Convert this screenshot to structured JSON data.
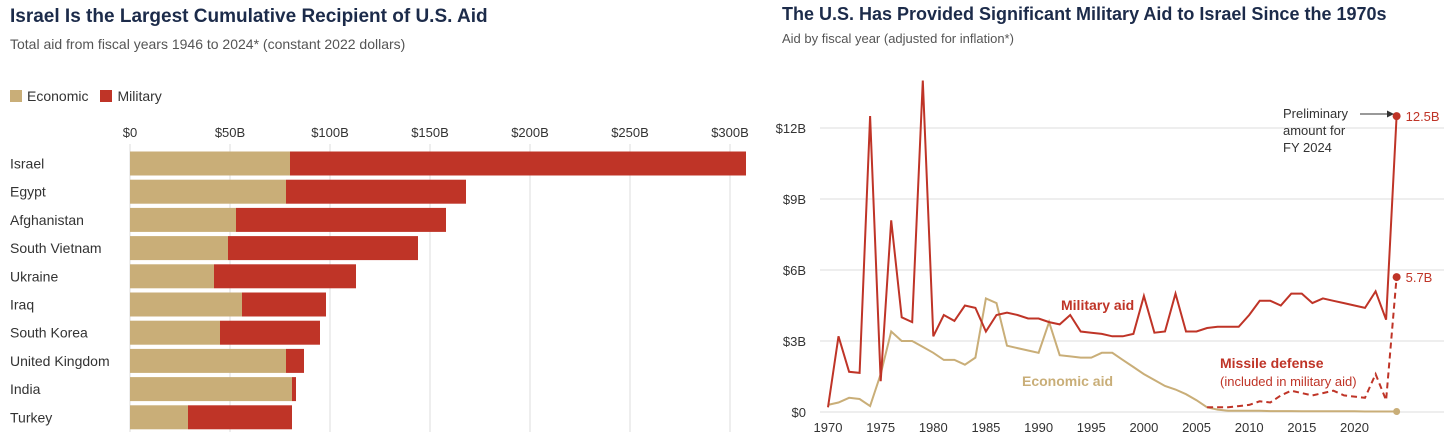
{
  "colors": {
    "economic": "#c9ae78",
    "military": "#bf3427",
    "grid": "#dedede",
    "title": "#1c2b4a"
  },
  "chart_data": [
    {
      "type": "bar",
      "orientation": "horizontal",
      "stacked": true,
      "title": "Israel Is the Largest Cumulative Recipient of U.S. Aid",
      "subtitle": "Total aid from fiscal years 1946 to 2024* (constant 2022 dollars)",
      "legend": [
        "Economic",
        "Military"
      ],
      "legend_position": "top-left",
      "xlim": [
        0,
        310
      ],
      "x_ticks": [
        0,
        50,
        100,
        150,
        200,
        250,
        300
      ],
      "x_tick_labels": [
        "$0",
        "$50B",
        "$100B",
        "$150B",
        "$200B",
        "$250B",
        "$300B"
      ],
      "grid": true,
      "categories": [
        "Israel",
        "Egypt",
        "Afghanistan",
        "South Vietnam",
        "Ukraine",
        "Iraq",
        "South Korea",
        "United Kingdom",
        "India",
        "Turkey"
      ],
      "series": [
        {
          "name": "Economic",
          "values": [
            80,
            78,
            53,
            49,
            42,
            56,
            45,
            78,
            81,
            29
          ]
        },
        {
          "name": "Military",
          "values": [
            228,
            90,
            105,
            95,
            71,
            42,
            50,
            9,
            2,
            52
          ]
        }
      ]
    },
    {
      "type": "line",
      "title": "The U.S. Has Provided Significant Military Aid to Israel Since the 1970s",
      "subtitle": "Aid by fiscal year (adjusted for inflation*)",
      "ylim": [
        0,
        14
      ],
      "y_ticks": [
        0,
        3,
        6,
        9,
        12
      ],
      "y_tick_labels": [
        "$0",
        "$3B",
        "$6B",
        "$9B",
        "$12B"
      ],
      "xlim": [
        1969,
        2025
      ],
      "x_ticks": [
        1970,
        1975,
        1980,
        1985,
        1990,
        1995,
        2000,
        2005,
        2010,
        2015,
        2020
      ],
      "grid": true,
      "series": [
        {
          "name": "Military aid",
          "x": [
            1970,
            1971,
            1972,
            1973,
            1974,
            1975,
            1976,
            1977,
            1978,
            1979,
            1980,
            1981,
            1982,
            1983,
            1984,
            1985,
            1986,
            1987,
            1988,
            1989,
            1990,
            1991,
            1992,
            1993,
            1994,
            1995,
            1996,
            1997,
            1998,
            1999,
            2000,
            2001,
            2002,
            2003,
            2004,
            2005,
            2006,
            2007,
            2008,
            2009,
            2010,
            2011,
            2012,
            2013,
            2014,
            2015,
            2016,
            2017,
            2018,
            2019,
            2020,
            2021,
            2022,
            2023,
            2024
          ],
          "values": [
            0.2,
            3.2,
            1.7,
            1.65,
            12.5,
            1.3,
            8.1,
            4.0,
            3.8,
            14.0,
            3.2,
            4.1,
            3.85,
            4.5,
            4.4,
            3.4,
            4.1,
            4.2,
            4.1,
            3.95,
            3.95,
            3.8,
            3.7,
            4.1,
            3.4,
            3.35,
            3.3,
            3.2,
            3.2,
            3.3,
            4.9,
            3.35,
            3.4,
            5.0,
            3.4,
            3.4,
            3.55,
            3.6,
            3.6,
            3.6,
            4.1,
            4.7,
            4.7,
            4.5,
            5.0,
            5.0,
            4.6,
            4.8,
            4.7,
            4.6,
            4.5,
            4.4,
            5.1,
            3.9,
            12.5
          ]
        },
        {
          "name": "Economic aid",
          "x": [
            1970,
            1971,
            1972,
            1973,
            1974,
            1975,
            1976,
            1977,
            1978,
            1979,
            1980,
            1981,
            1982,
            1983,
            1984,
            1985,
            1986,
            1987,
            1988,
            1989,
            1990,
            1991,
            1992,
            1993,
            1994,
            1995,
            1996,
            1997,
            1998,
            1999,
            2000,
            2001,
            2002,
            2003,
            2004,
            2005,
            2006,
            2007,
            2008,
            2009,
            2010,
            2011,
            2012,
            2013,
            2014,
            2015,
            2016,
            2017,
            2018,
            2019,
            2020,
            2021,
            2022,
            2023,
            2024
          ],
          "values": [
            0.3,
            0.4,
            0.6,
            0.55,
            0.25,
            1.6,
            3.4,
            3.0,
            3.0,
            2.75,
            2.5,
            2.2,
            2.2,
            2.0,
            2.3,
            4.8,
            4.6,
            2.8,
            2.7,
            2.6,
            2.5,
            3.8,
            2.4,
            2.35,
            2.3,
            2.3,
            2.5,
            2.5,
            2.2,
            1.9,
            1.6,
            1.35,
            1.1,
            0.95,
            0.75,
            0.5,
            0.2,
            0.1,
            0.05,
            0.05,
            0.05,
            0.05,
            0.04,
            0.04,
            0.04,
            0.03,
            0.03,
            0.03,
            0.03,
            0.03,
            0.03,
            0.02,
            0.02,
            0.02,
            0.02
          ]
        },
        {
          "name": "Missile defense",
          "x": [
            2006,
            2007,
            2008,
            2009,
            2010,
            2011,
            2012,
            2013,
            2014,
            2015,
            2016,
            2017,
            2018,
            2019,
            2020,
            2021,
            2022,
            2023,
            2024
          ],
          "values": [
            0.2,
            0.2,
            0.2,
            0.25,
            0.3,
            0.45,
            0.4,
            0.7,
            0.9,
            0.8,
            0.7,
            0.8,
            0.9,
            0.7,
            0.65,
            0.6,
            1.6,
            0.5,
            5.7
          ]
        }
      ],
      "labels": {
        "military": "Military aid",
        "economic": "Economic aid",
        "missile_title": "Missile defense",
        "missile_sub": "(included in military aid)",
        "prelim_line1": "Preliminary",
        "prelim_line2": "amount for",
        "prelim_line3": "FY 2024",
        "end_military": "12.5B",
        "end_missile": "5.7B"
      }
    }
  ]
}
